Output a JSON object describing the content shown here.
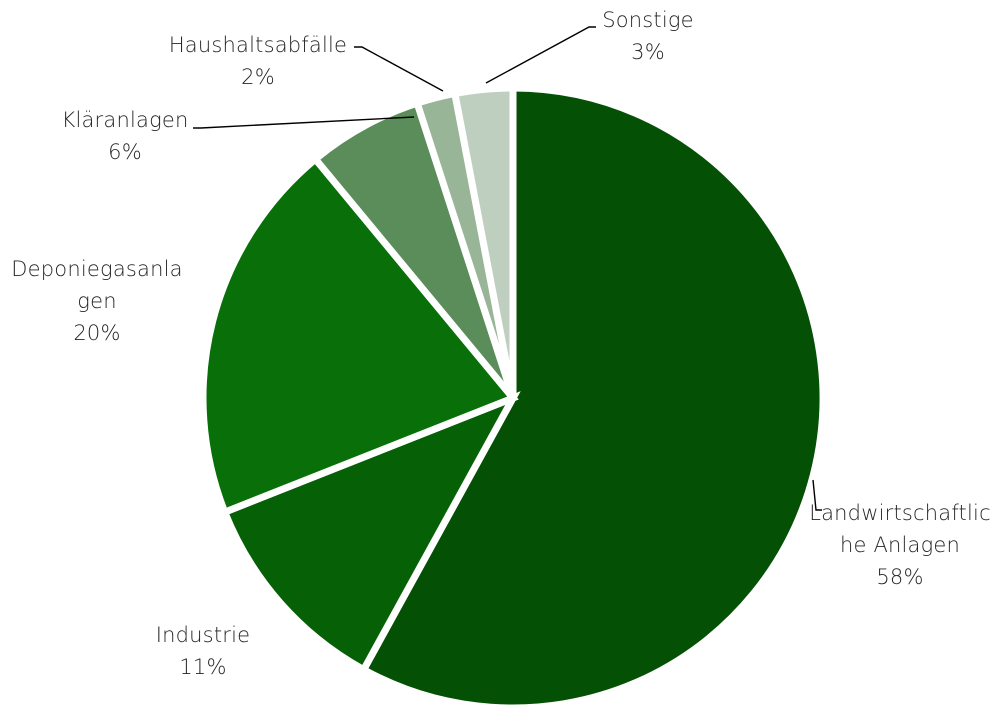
{
  "chart_data": {
    "type": "pie",
    "slices": [
      {
        "label_lines": [
          "Landwirtschaftlic",
          "he Anlagen"
        ],
        "pct_text": "58%",
        "value": 58,
        "color": "#045004"
      },
      {
        "label_lines": [
          "Industrie"
        ],
        "pct_text": "11%",
        "value": 11,
        "color": "#066006"
      },
      {
        "label_lines": [
          "Deponiegasanla",
          "gen"
        ],
        "pct_text": "20%",
        "value": 20,
        "color": "#097009"
      },
      {
        "label_lines": [
          "Kläranlagen"
        ],
        "pct_text": "6%",
        "value": 6,
        "color": "#5a8d5a"
      },
      {
        "label_lines": [
          "Haushaltsabfälle"
        ],
        "pct_text": "2%",
        "value": 2,
        "color": "#98b598"
      },
      {
        "label_lines": [
          "Sonstige"
        ],
        "pct_text": "3%",
        "value": 3,
        "color": "#bfcfbf"
      }
    ],
    "start_angle_deg": 0,
    "direction": "clockwise",
    "legend": "none"
  }
}
